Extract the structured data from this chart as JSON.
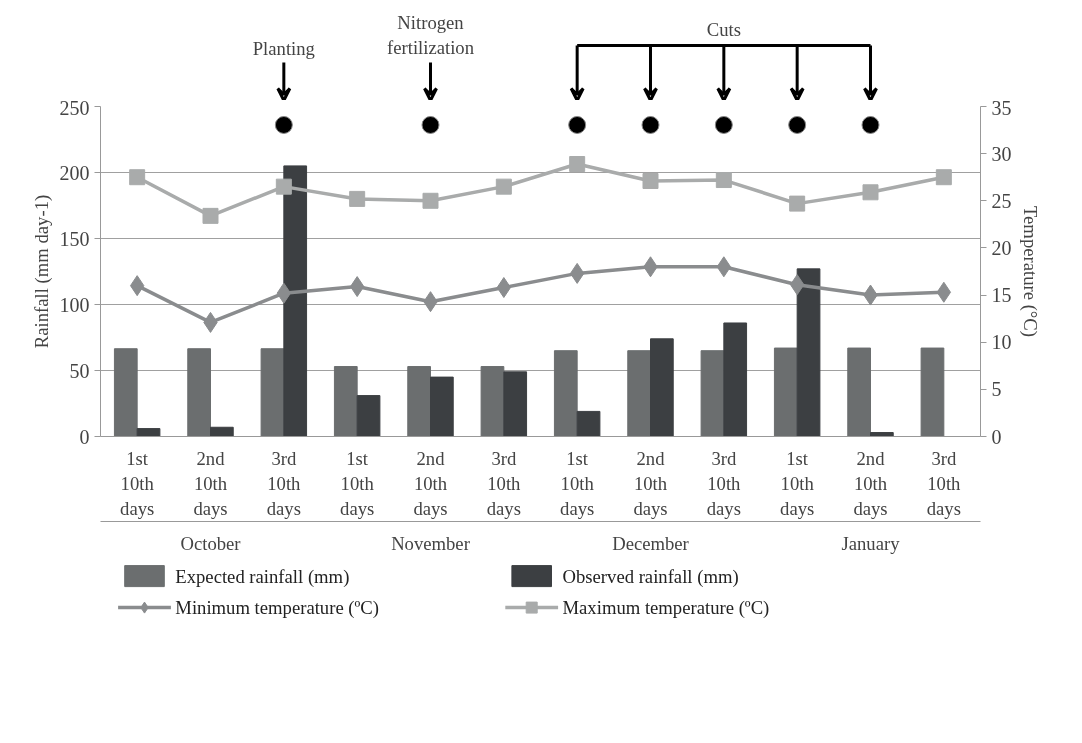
{
  "chart_data": {
    "type": "bar",
    "ylabel": "Rainfall (mm day-1)",
    "y2label": "Temperature (°C)",
    "categories": [
      "1st 10th days",
      "2nd 10th days",
      "3rd 10th days",
      "1st 10th days",
      "2nd 10th days",
      "3rd 10th days",
      "1st 10th days",
      "2nd 10th days",
      "3rd 10th days",
      "1st 10th days",
      "2nd 10th days",
      "3rd 10th days"
    ],
    "series": [
      {
        "name": "Expected rainfall (mm)",
        "color": "#6b6e6f",
        "values": [
          66.5,
          66.5,
          66.5,
          53,
          53,
          53,
          65,
          65,
          65,
          67,
          67,
          67
        ]
      },
      {
        "name": "Observed rainfall (mm)",
        "color": "#3c3f42",
        "values": [
          6,
          7,
          205,
          31,
          45,
          49,
          19,
          74,
          86,
          127,
          3,
          0
        ]
      },
      {
        "name": "Minimum temperature  (ºC)",
        "type": "line",
        "axis": "y2",
        "marker": "diamond",
        "color": "#8a8c8e",
        "values": [
          16.0,
          12.1,
          15.2,
          15.9,
          14.3,
          15.8,
          17.3,
          18.0,
          18.0,
          16.1,
          15.0,
          15.3
        ]
      },
      {
        "name": "Maximum temperature (ºC)",
        "type": "line",
        "axis": "y2",
        "marker": "square",
        "color": "#a9abab",
        "values": [
          27.5,
          23.4,
          26.5,
          25.2,
          25.0,
          26.5,
          28.9,
          27.1,
          27.2,
          24.7,
          25.9,
          27.5
        ]
      },
      {
        "type": "scatter",
        "marker": "circle",
        "color": "#000000",
        "values": [
          null,
          null,
          236,
          null,
          236,
          null,
          236,
          236,
          236,
          236,
          236,
          null
        ]
      }
    ],
    "ylim": [
      0,
      250
    ],
    "yticks": [
      0,
      50,
      100,
      150,
      200,
      250
    ],
    "y2lim": [
      0,
      35
    ],
    "y2ticks": [
      0,
      5,
      10,
      15,
      20,
      25,
      30,
      35
    ],
    "grid": "y",
    "legend": "bottom",
    "annotations": [
      "Planting",
      "Nitrogen fertilization",
      "Cuts",
      "October",
      "November",
      "December",
      "January"
    ]
  }
}
